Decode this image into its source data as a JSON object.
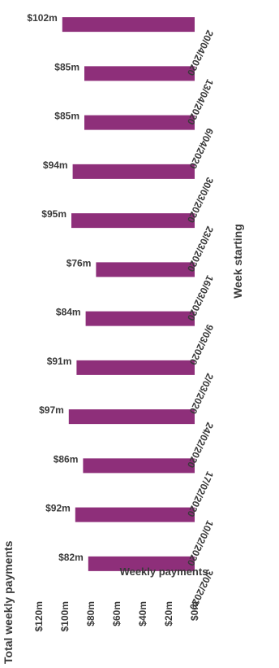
{
  "chart_data": {
    "type": "bar",
    "title": "Total weekly payments",
    "xlabel": "Week starting",
    "ylabel": "Weekly payments",
    "categories": [
      "3/02/2020",
      "10/02/2020",
      "17/02/2020",
      "24/02/2020",
      "2/03/2020",
      "9/03/2020",
      "16/03/2020",
      "23/03/2020",
      "30/03/2020",
      "6/04/2020",
      "13/04/2020",
      "20/04/2020"
    ],
    "values": [
      82,
      92,
      86,
      97,
      91,
      84,
      76,
      95,
      94,
      85,
      85,
      102
    ],
    "data_labels": [
      "$82m",
      "$92m",
      "$86m",
      "$97m",
      "$91m",
      "$84m",
      "$76m",
      "$95m",
      "$94m",
      "$85m",
      "$85m",
      "$102m"
    ],
    "yticks": [
      "$0m",
      "$20m",
      "$40m",
      "$60m",
      "$80m",
      "$100m",
      "$120m"
    ],
    "ylim": [
      0,
      120
    ],
    "units": "$m",
    "grid": false,
    "legend": "none",
    "bar_color": "#8e2f7a"
  }
}
